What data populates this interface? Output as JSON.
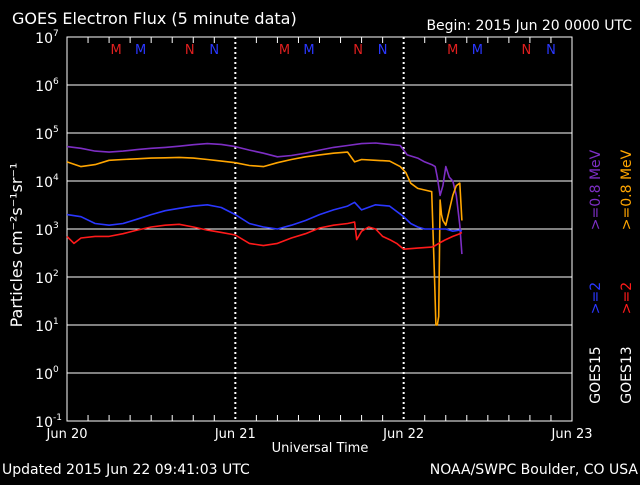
{
  "header": {
    "title": "GOES Electron Flux (5 minute data)",
    "begin": "Begin: 2015 Jun 20 0000 UTC"
  },
  "footer": {
    "updated": "Updated 2015 Jun 22 09:41:03 UTC",
    "credit": "NOAA/SWPC Boulder, CO USA"
  },
  "colors": {
    "goes15_gt08": "#7d2ec4",
    "goes13_gt08": "#ffa500",
    "goes15_gt2": "#2a37ff",
    "goes13_gt2": "#ff1a1a",
    "marker_m": "#e01f1f",
    "marker_n": "#2a37ff"
  },
  "chart_data": {
    "type": "line",
    "title": "GOES Electron Flux (5 minute data)",
    "xlabel": "Universal Time",
    "ylabel": "Particles cm⁻²s⁻¹sr⁻¹",
    "yscale": "log",
    "xlim": [
      0,
      72
    ],
    "ylim": [
      0.1,
      10000000
    ],
    "x_ticks": [
      {
        "x": 0,
        "label": "Jun 20"
      },
      {
        "x": 24,
        "label": "Jun 21"
      },
      {
        "x": 48,
        "label": "Jun 22"
      },
      {
        "x": 72,
        "label": "Jun 23"
      }
    ],
    "y_ticks": [
      {
        "exp": "-1",
        "value": 0.1
      },
      {
        "exp": "0",
        "value": 1
      },
      {
        "exp": "1",
        "value": 10
      },
      {
        "exp": "2",
        "value": 100
      },
      {
        "exp": "3",
        "value": 1000
      },
      {
        "exp": "4",
        "value": 10000
      },
      {
        "exp": "5",
        "value": 100000
      },
      {
        "exp": "6",
        "value": 1000000
      },
      {
        "exp": "7",
        "value": 10000000
      }
    ],
    "grid": true,
    "threshold": 1000,
    "legend": {
      "right_col1": ">=0.8 MeV",
      "right_col2": ">=0.8 MeV",
      "right_col1_b": ">=2",
      "right_col2_b": ">=2",
      "sat1": "GOES15",
      "sat2": "GOES13"
    },
    "markers": [
      {
        "x": 7,
        "label": "M",
        "kind": "m"
      },
      {
        "x": 10.5,
        "label": "M",
        "kind": "n"
      },
      {
        "x": 17.5,
        "label": "N",
        "kind": "m"
      },
      {
        "x": 21,
        "label": "N",
        "kind": "n"
      },
      {
        "x": 31,
        "label": "M",
        "kind": "m"
      },
      {
        "x": 34.5,
        "label": "M",
        "kind": "n"
      },
      {
        "x": 41.5,
        "label": "N",
        "kind": "m"
      },
      {
        "x": 45,
        "label": "N",
        "kind": "n"
      },
      {
        "x": 55,
        "label": "M",
        "kind": "m"
      },
      {
        "x": 58.5,
        "label": "M",
        "kind": "n"
      },
      {
        "x": 65.5,
        "label": "N",
        "kind": "m"
      },
      {
        "x": 69,
        "label": "N",
        "kind": "n"
      }
    ],
    "series": [
      {
        "color_key": "goes15_gt08",
        "x": [
          0,
          2,
          4,
          6,
          8,
          10,
          12,
          14,
          16,
          18,
          20,
          22,
          24,
          26,
          28,
          30,
          32,
          34,
          36,
          38,
          40,
          42,
          44,
          46,
          47.5,
          48.5,
          50,
          51,
          52,
          52.5,
          52.8,
          53.2,
          53.6,
          54,
          54.5,
          55,
          55.5,
          56,
          56.3
        ],
        "values": [
          52000,
          48000,
          42000,
          40000,
          42000,
          45000,
          48000,
          50000,
          53000,
          57000,
          60000,
          58000,
          52000,
          44000,
          38000,
          32000,
          34000,
          38000,
          44000,
          50000,
          55000,
          60000,
          62000,
          58000,
          55000,
          35000,
          30000,
          25000,
          22000,
          20000,
          12000,
          5000,
          8000,
          20000,
          12000,
          10000,
          5000,
          1200,
          300
        ]
      },
      {
        "color_key": "goes13_gt08",
        "x": [
          0,
          2,
          4,
          6,
          8,
          10,
          12,
          14,
          16,
          18,
          20,
          22,
          24,
          26,
          28,
          30,
          32,
          34,
          36,
          38,
          40,
          41,
          42,
          44,
          46,
          47.5,
          48.3,
          49,
          50,
          51,
          52,
          52.4,
          52.6,
          52.8,
          53.0,
          53.2,
          53.4,
          53.6,
          54,
          55,
          55.5,
          56,
          56.3
        ],
        "values": [
          25000,
          20000,
          22000,
          27000,
          28000,
          29000,
          30000,
          30500,
          31000,
          30000,
          28000,
          26000,
          24000,
          21000,
          20000,
          24000,
          28000,
          32000,
          35000,
          38000,
          40000,
          25000,
          28000,
          27000,
          26000,
          20000,
          15000,
          9000,
          7000,
          6500,
          6000,
          100,
          10,
          10,
          15,
          4000,
          2000,
          1500,
          1200,
          5000,
          8000,
          9000,
          1500
        ]
      },
      {
        "color_key": "goes15_gt2",
        "x": [
          0,
          2,
          4,
          6,
          8,
          10,
          12,
          14,
          16,
          18,
          20,
          22,
          24,
          26,
          28,
          30,
          32,
          34,
          36,
          38,
          40,
          41,
          42,
          44,
          46,
          48,
          49,
          50,
          51,
          52,
          53,
          54,
          55,
          56,
          56.3
        ],
        "values": [
          2000,
          1800,
          1300,
          1200,
          1300,
          1600,
          2000,
          2400,
          2700,
          3000,
          3200,
          2800,
          2000,
          1300,
          1100,
          1000,
          1200,
          1500,
          2000,
          2500,
          3000,
          3600,
          2500,
          3200,
          3000,
          1800,
          1300,
          1100,
          1000,
          1000,
          1000,
          1000,
          900,
          950,
          900
        ]
      },
      {
        "color_key": "goes13_gt2",
        "x": [
          0,
          1,
          2,
          4,
          6,
          8,
          10,
          12,
          14,
          16,
          18,
          20,
          22,
          24,
          26,
          28,
          30,
          32,
          34,
          36,
          38,
          40,
          41,
          41.3,
          42,
          43,
          44,
          45,
          46,
          47,
          48,
          50,
          52,
          52.5,
          53,
          53.5,
          54,
          55,
          56,
          56.3
        ],
        "values": [
          700,
          500,
          650,
          700,
          700,
          800,
          950,
          1100,
          1200,
          1250,
          1100,
          950,
          850,
          750,
          500,
          450,
          500,
          650,
          800,
          1050,
          1200,
          1300,
          1400,
          600,
          900,
          1100,
          1000,
          700,
          600,
          500,
          380,
          400,
          420,
          450,
          500,
          550,
          600,
          700,
          800,
          850
        ]
      }
    ]
  }
}
